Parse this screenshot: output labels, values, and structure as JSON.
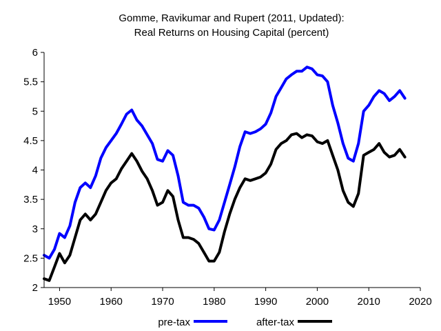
{
  "chart_data": {
    "type": "line",
    "title": [
      "Gomme, Ravikumar and Rupert (2011, Updated):",
      "Real Returns on Housing Capital (percent)"
    ],
    "xlabel": "",
    "ylabel": "",
    "xlim": [
      1947,
      2020
    ],
    "ylim": [
      2,
      6
    ],
    "xticks": [
      1950,
      1960,
      1970,
      1980,
      1990,
      2000,
      2010,
      2020
    ],
    "yticks": [
      2,
      2.5,
      3,
      3.5,
      4,
      4.5,
      5,
      5.5,
      6
    ],
    "grid": false,
    "legend_placement": "bottom",
    "series": [
      {
        "name": "pre-tax",
        "color": "#0000ff",
        "points": [
          [
            1947,
            2.55
          ],
          [
            1948,
            2.5
          ],
          [
            1949,
            2.65
          ],
          [
            1950,
            2.92
          ],
          [
            1951,
            2.85
          ],
          [
            1952,
            3.05
          ],
          [
            1953,
            3.45
          ],
          [
            1954,
            3.7
          ],
          [
            1955,
            3.78
          ],
          [
            1956,
            3.7
          ],
          [
            1957,
            3.9
          ],
          [
            1958,
            4.2
          ],
          [
            1959,
            4.38
          ],
          [
            1960,
            4.5
          ],
          [
            1961,
            4.62
          ],
          [
            1962,
            4.78
          ],
          [
            1963,
            4.95
          ],
          [
            1964,
            5.02
          ],
          [
            1965,
            4.85
          ],
          [
            1966,
            4.75
          ],
          [
            1967,
            4.6
          ],
          [
            1968,
            4.45
          ],
          [
            1969,
            4.18
          ],
          [
            1970,
            4.15
          ],
          [
            1971,
            4.33
          ],
          [
            1972,
            4.25
          ],
          [
            1973,
            3.9
          ],
          [
            1974,
            3.45
          ],
          [
            1975,
            3.4
          ],
          [
            1976,
            3.4
          ],
          [
            1977,
            3.35
          ],
          [
            1978,
            3.2
          ],
          [
            1979,
            3.0
          ],
          [
            1980,
            2.98
          ],
          [
            1981,
            3.15
          ],
          [
            1982,
            3.45
          ],
          [
            1983,
            3.75
          ],
          [
            1984,
            4.05
          ],
          [
            1985,
            4.4
          ],
          [
            1986,
            4.65
          ],
          [
            1987,
            4.62
          ],
          [
            1988,
            4.65
          ],
          [
            1989,
            4.7
          ],
          [
            1990,
            4.78
          ],
          [
            1991,
            4.97
          ],
          [
            1992,
            5.25
          ],
          [
            1993,
            5.4
          ],
          [
            1994,
            5.55
          ],
          [
            1995,
            5.62
          ],
          [
            1996,
            5.68
          ],
          [
            1997,
            5.68
          ],
          [
            1998,
            5.75
          ],
          [
            1999,
            5.72
          ],
          [
            2000,
            5.62
          ],
          [
            2001,
            5.6
          ],
          [
            2002,
            5.5
          ],
          [
            2003,
            5.1
          ],
          [
            2004,
            4.8
          ],
          [
            2005,
            4.45
          ],
          [
            2006,
            4.2
          ],
          [
            2007,
            4.15
          ],
          [
            2008,
            4.45
          ],
          [
            2009,
            5.0
          ],
          [
            2010,
            5.1
          ],
          [
            2011,
            5.25
          ],
          [
            2012,
            5.35
          ],
          [
            2013,
            5.3
          ],
          [
            2014,
            5.18
          ],
          [
            2015,
            5.25
          ],
          [
            2016,
            5.35
          ],
          [
            2017,
            5.22
          ]
        ]
      },
      {
        "name": "after-tax",
        "color": "#000000",
        "points": [
          [
            1947,
            2.15
          ],
          [
            1948,
            2.12
          ],
          [
            1949,
            2.35
          ],
          [
            1950,
            2.58
          ],
          [
            1951,
            2.42
          ],
          [
            1952,
            2.55
          ],
          [
            1953,
            2.85
          ],
          [
            1954,
            3.15
          ],
          [
            1955,
            3.25
          ],
          [
            1956,
            3.15
          ],
          [
            1957,
            3.25
          ],
          [
            1958,
            3.45
          ],
          [
            1959,
            3.65
          ],
          [
            1960,
            3.78
          ],
          [
            1961,
            3.85
          ],
          [
            1962,
            4.02
          ],
          [
            1963,
            4.15
          ],
          [
            1964,
            4.28
          ],
          [
            1965,
            4.15
          ],
          [
            1966,
            3.98
          ],
          [
            1967,
            3.85
          ],
          [
            1968,
            3.65
          ],
          [
            1969,
            3.4
          ],
          [
            1970,
            3.45
          ],
          [
            1971,
            3.65
          ],
          [
            1972,
            3.55
          ],
          [
            1973,
            3.15
          ],
          [
            1974,
            2.85
          ],
          [
            1975,
            2.85
          ],
          [
            1976,
            2.82
          ],
          [
            1977,
            2.75
          ],
          [
            1978,
            2.6
          ],
          [
            1979,
            2.45
          ],
          [
            1980,
            2.45
          ],
          [
            1981,
            2.6
          ],
          [
            1982,
            2.95
          ],
          [
            1983,
            3.25
          ],
          [
            1984,
            3.5
          ],
          [
            1985,
            3.7
          ],
          [
            1986,
            3.85
          ],
          [
            1987,
            3.82
          ],
          [
            1988,
            3.85
          ],
          [
            1989,
            3.88
          ],
          [
            1990,
            3.95
          ],
          [
            1991,
            4.1
          ],
          [
            1992,
            4.35
          ],
          [
            1993,
            4.45
          ],
          [
            1994,
            4.5
          ],
          [
            1995,
            4.6
          ],
          [
            1996,
            4.62
          ],
          [
            1997,
            4.55
          ],
          [
            1998,
            4.6
          ],
          [
            1999,
            4.58
          ],
          [
            2000,
            4.48
          ],
          [
            2001,
            4.45
          ],
          [
            2002,
            4.5
          ],
          [
            2003,
            4.25
          ],
          [
            2004,
            4.0
          ],
          [
            2005,
            3.65
          ],
          [
            2006,
            3.45
          ],
          [
            2007,
            3.38
          ],
          [
            2008,
            3.6
          ],
          [
            2009,
            4.25
          ],
          [
            2010,
            4.3
          ],
          [
            2011,
            4.35
          ],
          [
            2012,
            4.45
          ],
          [
            2013,
            4.3
          ],
          [
            2014,
            4.22
          ],
          [
            2015,
            4.25
          ],
          [
            2016,
            4.35
          ],
          [
            2017,
            4.22
          ]
        ]
      }
    ]
  }
}
